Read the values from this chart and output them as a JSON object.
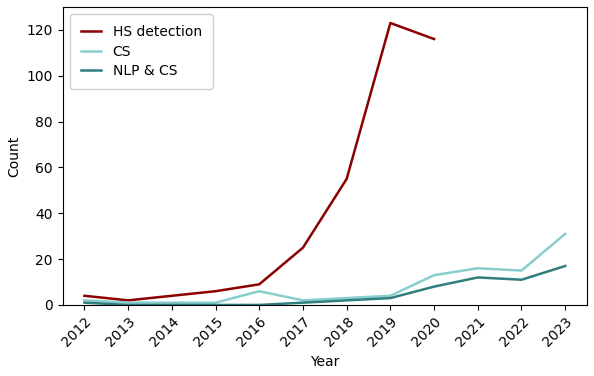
{
  "years": [
    2012,
    2013,
    2014,
    2015,
    2016,
    2017,
    2018,
    2019,
    2020,
    2021,
    2022,
    2023
  ],
  "hs_detection": [
    4,
    2,
    4,
    6,
    9,
    25,
    55,
    123,
    116,
    null,
    null,
    null
  ],
  "cs": [
    2,
    1,
    1,
    1,
    6,
    2,
    3,
    4,
    13,
    16,
    15,
    31
  ],
  "nlp_cs": [
    1,
    0,
    0,
    0,
    0,
    1,
    2,
    3,
    8,
    12,
    11,
    17
  ],
  "hs_color": "#8B0000",
  "cs_color": "#87CECD",
  "nlp_cs_color": "#2F7F7F",
  "xlabel": "Year",
  "ylabel": "Count",
  "legend_labels": [
    "HS detection",
    "CS",
    "NLP & CS"
  ],
  "ylim": [
    0,
    130
  ],
  "xlim": [
    2011.5,
    2023.5
  ],
  "linewidth": 1.8,
  "figsize": [
    5.94,
    3.76
  ],
  "dpi": 100,
  "yticks": [
    0,
    20,
    40,
    60,
    80,
    100,
    120
  ]
}
